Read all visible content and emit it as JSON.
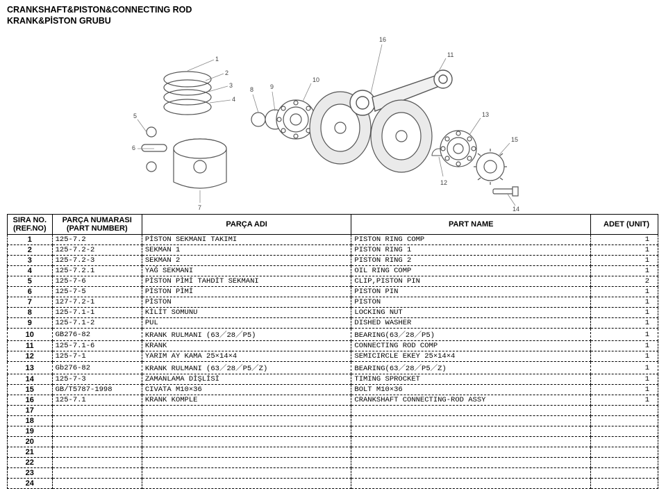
{
  "title": {
    "line1": "CRANKSHAFT&PISTON&CONNECTING ROD",
    "line2": "KRANK&PİSTON GRUBU"
  },
  "headers": {
    "no": "SIRA NO. (REF.NO)",
    "part": "PARÇA NUMARASI (PART NUMBER)",
    "tr": "PARÇA ADI",
    "en": "PART NAME",
    "qty": "ADET (UNIT)"
  },
  "rows": [
    {
      "no": "1",
      "part": "125-7.2",
      "tr": "PİSTON SEKMANI TAKIMI",
      "en": "PISTON RING COMP",
      "qty": "1"
    },
    {
      "no": "2",
      "part": "125-7.2-2",
      "tr": "SEKMAN 1",
      "en": "PISTON RING 1",
      "qty": "1"
    },
    {
      "no": "3",
      "part": "125-7.2-3",
      "tr": "SEKMAN 2",
      "en": "PISTON RING 2",
      "qty": "1"
    },
    {
      "no": "4",
      "part": "125-7.2.1",
      "tr": "YAĞ SEKMANI",
      "en": "OIL RING COMP",
      "qty": "1"
    },
    {
      "no": "5",
      "part": "125-7-6",
      "tr": "PİSTON PİMİ TAHDİT SEKMANI",
      "en": "CLIP,PISTON PIN",
      "qty": "2"
    },
    {
      "no": "6",
      "part": "125-7-5",
      "tr": "PİSTON PİMİ",
      "en": "PISTON PIN",
      "qty": "1"
    },
    {
      "no": "7",
      "part": "127-7.2-1",
      "tr": "PİSTON",
      "en": "PISTON",
      "qty": "1"
    },
    {
      "no": "8",
      "part": "125-7.1-1",
      "tr": "KİLİT SOMUNU",
      "en": "LOCKING NUT",
      "qty": "1"
    },
    {
      "no": "9",
      "part": "125-7.1-2",
      "tr": "PUL",
      "en": "DISHED WASHER",
      "qty": "1"
    },
    {
      "no": "10",
      "part": "GB276-82",
      "tr": "KRANK RULMANI (63／28／P5)",
      "en": "BEARING(63／28／P5)",
      "qty": "1"
    },
    {
      "no": "11",
      "part": "125-7.1-6",
      "tr": "KRANK",
      "en": "CONNECTING ROD COMP",
      "qty": "1"
    },
    {
      "no": "12",
      "part": "125-7-1",
      "tr": "YARIM AY KAMA 25×14×4",
      "en": "SEMICIRCLE EKEY 25×14×4",
      "qty": "1"
    },
    {
      "no": "13",
      "part": "Gb276-82",
      "tr": "KRANK RULMANI (63／28／P5／Z)",
      "en": "BEARING(63／28／P5／Z)",
      "qty": "1"
    },
    {
      "no": "14",
      "part": "125-7-3",
      "tr": "ZAMANLAMA DİŞLİSİ",
      "en": "TIMING SPROCKET",
      "qty": "1"
    },
    {
      "no": "15",
      "part": "GB/T5787-1998",
      "tr": "CIVATA M10×36",
      "en": "BOLT M10×36",
      "qty": "1"
    },
    {
      "no": "16",
      "part": "125-7.1",
      "tr": "KRANK KOMPLE",
      "en": "CRANKSHAFT CONNECTING-ROD ASSY",
      "qty": "1"
    },
    {
      "no": "17",
      "part": "",
      "tr": "",
      "en": "",
      "qty": ""
    },
    {
      "no": "18",
      "part": "",
      "tr": "",
      "en": "",
      "qty": ""
    },
    {
      "no": "19",
      "part": "",
      "tr": "",
      "en": "",
      "qty": ""
    },
    {
      "no": "20",
      "part": "",
      "tr": "",
      "en": "",
      "qty": ""
    },
    {
      "no": "21",
      "part": "",
      "tr": "",
      "en": "",
      "qty": ""
    },
    {
      "no": "22",
      "part": "",
      "tr": "",
      "en": "",
      "qty": ""
    },
    {
      "no": "23",
      "part": "",
      "tr": "",
      "en": "",
      "qty": ""
    },
    {
      "no": "24",
      "part": "",
      "tr": "",
      "en": "",
      "qty": ""
    }
  ],
  "diagram": {
    "callouts": [
      "1",
      "2",
      "3",
      "4",
      "5",
      "6",
      "7",
      "8",
      "9",
      "10",
      "11",
      "12",
      "13",
      "14",
      "15",
      "16"
    ]
  }
}
